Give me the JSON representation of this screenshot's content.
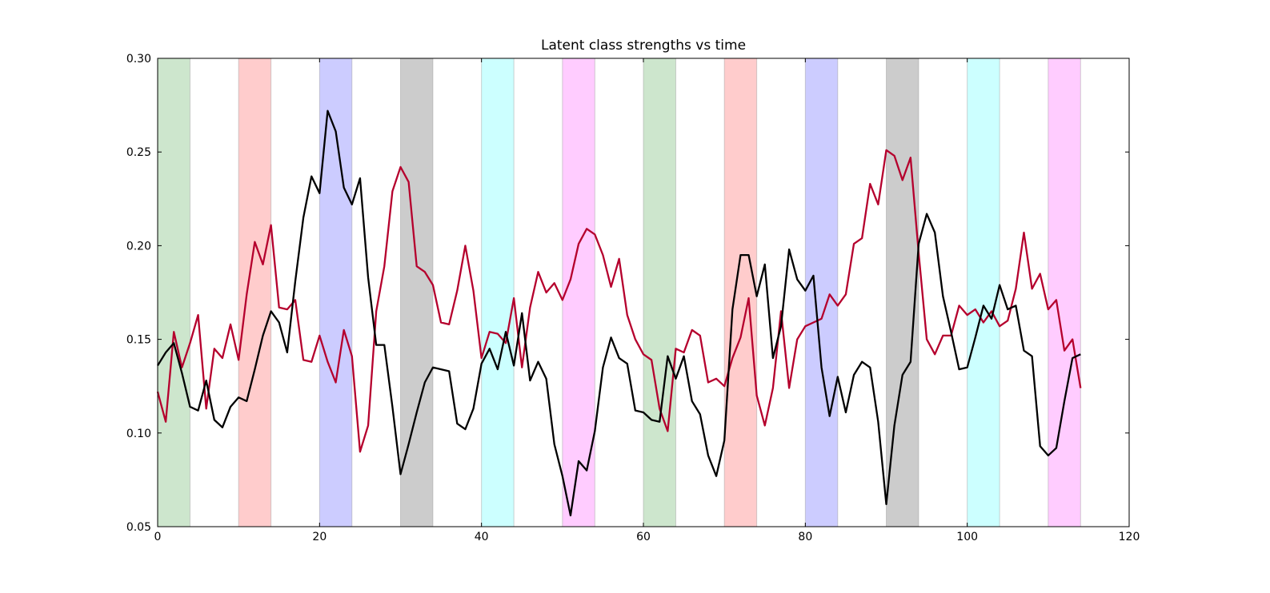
{
  "chart_data": {
    "type": "line",
    "title": "Latent class strengths vs time",
    "xlabel": "",
    "ylabel": "",
    "xlim": [
      0,
      120
    ],
    "ylim": [
      0.05,
      0.3
    ],
    "xticks": [
      0,
      20,
      40,
      60,
      80,
      100,
      120
    ],
    "xtick_labels": [
      "0",
      "20",
      "40",
      "60",
      "80",
      "100",
      "120"
    ],
    "yticks": [
      0.05,
      0.1,
      0.15,
      0.2,
      0.25,
      0.3
    ],
    "ytick_labels": [
      "0.05",
      "0.10",
      "0.15",
      "0.20",
      "0.25",
      "0.30"
    ],
    "grid": false,
    "bands": [
      {
        "x0": 0,
        "x1": 4,
        "color": "#cde6cd"
      },
      {
        "x0": 10,
        "x1": 14,
        "color": "#ffcccc"
      },
      {
        "x0": 20,
        "x1": 24,
        "color": "#ccccff"
      },
      {
        "x0": 30,
        "x1": 34,
        "color": "#cccccc"
      },
      {
        "x0": 40,
        "x1": 44,
        "color": "#ccffff"
      },
      {
        "x0": 50,
        "x1": 54,
        "color": "#ffccff"
      },
      {
        "x0": 60,
        "x1": 64,
        "color": "#cde6cd"
      },
      {
        "x0": 70,
        "x1": 74,
        "color": "#ffcccc"
      },
      {
        "x0": 80,
        "x1": 84,
        "color": "#ccccff"
      },
      {
        "x0": 90,
        "x1": 94,
        "color": "#cccccc"
      },
      {
        "x0": 100,
        "x1": 104,
        "color": "#ccffff"
      },
      {
        "x0": 110,
        "x1": 114,
        "color": "#ffccff"
      }
    ],
    "series": [
      {
        "color": "#b5002d",
        "values": [
          0.122,
          0.106,
          0.154,
          0.135,
          0.148,
          0.163,
          0.113,
          0.145,
          0.14,
          0.158,
          0.139,
          0.174,
          0.202,
          0.19,
          0.211,
          0.167,
          0.166,
          0.171,
          0.139,
          0.138,
          0.152,
          0.138,
          0.127,
          0.155,
          0.141,
          0.09,
          0.104,
          0.165,
          0.189,
          0.229,
          0.242,
          0.234,
          0.189,
          0.186,
          0.179,
          0.159,
          0.158,
          0.176,
          0.2,
          0.176,
          0.14,
          0.154,
          0.153,
          0.148,
          0.172,
          0.135,
          0.167,
          0.186,
          0.175,
          0.18,
          0.171,
          0.182,
          0.201,
          0.209,
          0.206,
          0.195,
          0.178,
          0.193,
          0.163,
          0.15,
          0.142,
          0.139,
          0.113,
          0.101,
          0.145,
          0.143,
          0.155,
          0.152,
          0.127,
          0.129,
          0.125,
          0.14,
          0.151,
          0.172,
          0.12,
          0.104,
          0.124,
          0.165,
          0.124,
          0.15,
          0.157,
          0.159,
          0.161,
          0.174,
          0.168,
          0.174,
          0.201,
          0.204,
          0.233,
          0.222,
          0.251,
          0.248,
          0.235,
          0.247,
          0.196,
          0.15,
          0.142,
          0.152,
          0.152,
          0.168,
          0.163,
          0.166,
          0.159,
          0.165,
          0.157,
          0.16,
          0.177,
          0.207,
          0.177,
          0.185,
          0.166,
          0.171,
          0.144,
          0.15,
          0.124
        ]
      },
      {
        "color": "#000000",
        "values": [
          0.136,
          0.143,
          0.148,
          0.132,
          0.114,
          0.112,
          0.128,
          0.107,
          0.103,
          0.114,
          0.119,
          0.117,
          0.134,
          0.152,
          0.165,
          0.159,
          0.143,
          0.181,
          0.215,
          0.237,
          0.228,
          0.272,
          0.261,
          0.231,
          0.222,
          0.236,
          0.183,
          0.147,
          0.147,
          0.114,
          0.078,
          0.094,
          0.111,
          0.127,
          0.135,
          0.134,
          0.133,
          0.105,
          0.102,
          0.113,
          0.137,
          0.145,
          0.134,
          0.154,
          0.136,
          0.164,
          0.128,
          0.138,
          0.129,
          0.094,
          0.077,
          0.056,
          0.085,
          0.08,
          0.101,
          0.135,
          0.151,
          0.14,
          0.137,
          0.112,
          0.111,
          0.107,
          0.106,
          0.141,
          0.129,
          0.141,
          0.117,
          0.11,
          0.088,
          0.077,
          0.096,
          0.166,
          0.195,
          0.195,
          0.173,
          0.19,
          0.14,
          0.157,
          0.198,
          0.182,
          0.176,
          0.184,
          0.135,
          0.109,
          0.13,
          0.111,
          0.131,
          0.138,
          0.135,
          0.106,
          0.062,
          0.104,
          0.131,
          0.138,
          0.201,
          0.217,
          0.207,
          0.173,
          0.154,
          0.134,
          0.135,
          0.151,
          0.168,
          0.161,
          0.179,
          0.166,
          0.168,
          0.144,
          0.141,
          0.093,
          0.088,
          0.092,
          0.117,
          0.14,
          0.142
        ]
      }
    ]
  }
}
